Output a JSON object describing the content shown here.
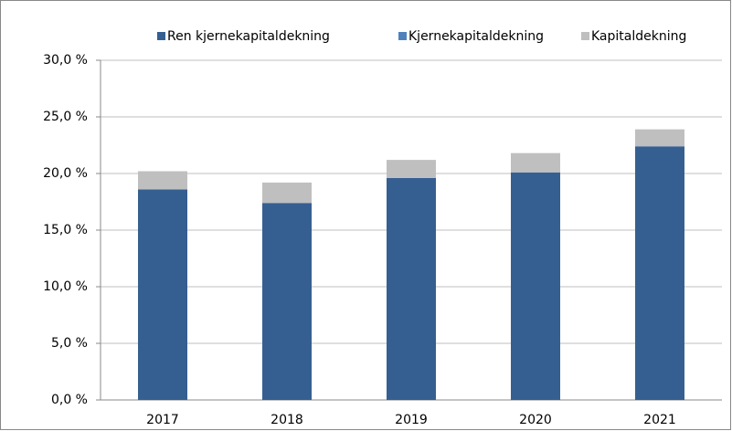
{
  "chart_data": {
    "type": "stacked_bar",
    "categories": [
      "2017",
      "2018",
      "2019",
      "2020",
      "2021"
    ],
    "series": [
      {
        "name": "Ren kjernekapitaldekning",
        "color": "#365f91",
        "values": [
          18.6,
          17.4,
          19.6,
          20.1,
          22.4
        ]
      },
      {
        "name": "Kjernekapitaldekning",
        "color": "#4f81bd",
        "values": [
          0,
          0,
          0,
          0,
          0
        ]
      },
      {
        "name": "Kapitaldekning",
        "color": "#bfbfbf",
        "values": [
          1.6,
          1.8,
          1.6,
          1.7,
          1.5
        ]
      }
    ],
    "ylim": [
      0,
      30
    ],
    "yticks": [
      {
        "value": 0,
        "label": "0,0 %"
      },
      {
        "value": 5,
        "label": "5,0 %"
      },
      {
        "value": 10,
        "label": "10,0 %"
      },
      {
        "value": 15,
        "label": "15,0 %"
      },
      {
        "value": 20,
        "label": "20,0 %"
      },
      {
        "value": 25,
        "label": "25,0 %"
      },
      {
        "value": 30,
        "label": "30,0 %"
      }
    ],
    "grid": true,
    "legend": "top"
  }
}
